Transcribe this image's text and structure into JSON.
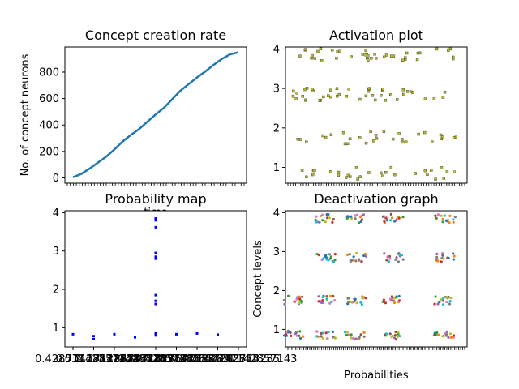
{
  "chart_data": [
    {
      "type": "line",
      "title": "Concept creation rate",
      "xlabel": "time",
      "ylabel": "No. of concept neurons",
      "xlim": [
        0,
        1000
      ],
      "ylim": [
        -40,
        990
      ],
      "yticks": [
        0,
        200,
        400,
        600,
        800
      ],
      "x": [
        0,
        50,
        100,
        150,
        200,
        250,
        300,
        350,
        400,
        450,
        500,
        550,
        600,
        650,
        700,
        750,
        800,
        850,
        900,
        950,
        1000
      ],
      "series": [
        {
          "color": "#1f77b4",
          "values": [
            5,
            30,
            70,
            115,
            160,
            215,
            275,
            325,
            370,
            425,
            480,
            530,
            595,
            660,
            710,
            760,
            805,
            855,
            900,
            935,
            950
          ]
        }
      ],
      "xtick_note": "dense overlapping tick labels (unreadable)"
    },
    {
      "type": "scatter",
      "title": "Activation plot",
      "xlabel": "",
      "ylabel": "",
      "ylim": [
        0.6,
        4.05
      ],
      "yticks": [
        1,
        2,
        3,
        4
      ],
      "marker_color": "#bcbd22",
      "levels": [
        {
          "y": 3.85,
          "count": 40
        },
        {
          "y": 2.85,
          "count": 45
        },
        {
          "y": 1.75,
          "count": 30
        },
        {
          "y": 0.85,
          "count": 30
        }
      ]
    },
    {
      "type": "scatter",
      "title": "Probability map",
      "xlabel": "",
      "ylabel": "",
      "ylim": [
        0.5,
        4.05
      ],
      "yticks": [
        1,
        2,
        3,
        4
      ],
      "marker_color": "#0000ff",
      "x_categories": [
        "0.2",
        "0.4285714285714285",
        "0.7142857142857143",
        "0.5714285714285714",
        "0.2857142857142857",
        "0.8571428571428571",
        "0.42857142857142855",
        "0.14285714285714285",
        "0.7142857142857143"
      ],
      "points": [
        {
          "x": 0,
          "y": 0.83
        },
        {
          "x": 1,
          "y": 0.78
        },
        {
          "x": 1,
          "y": 0.7
        },
        {
          "x": 2,
          "y": 0.83
        },
        {
          "x": 3,
          "y": 0.75
        },
        {
          "x": 4,
          "y": 3.85
        },
        {
          "x": 4,
          "y": 3.8
        },
        {
          "x": 4,
          "y": 3.62
        },
        {
          "x": 4,
          "y": 2.95
        },
        {
          "x": 4,
          "y": 2.85
        },
        {
          "x": 4,
          "y": 2.8
        },
        {
          "x": 4,
          "y": 1.85
        },
        {
          "x": 4,
          "y": 1.7
        },
        {
          "x": 4,
          "y": 1.62
        },
        {
          "x": 4,
          "y": 0.85
        },
        {
          "x": 4,
          "y": 0.8
        },
        {
          "x": 5,
          "y": 0.83
        },
        {
          "x": 6,
          "y": 0.85
        },
        {
          "x": 7,
          "y": 0.82
        }
      ]
    },
    {
      "type": "scatter",
      "title": "Deactivation graph",
      "xlabel": "Probabilities",
      "ylabel": "Concept levels",
      "ylim": [
        0.55,
        4.05
      ],
      "yticks": [
        1,
        2,
        3,
        4
      ],
      "palette": [
        "#1f77b4",
        "#ff7f0e",
        "#2ca02c",
        "#d62728",
        "#9467bd",
        "#8c564b",
        "#e377c2",
        "#7f7f7f",
        "#bcbd22",
        "#17becf"
      ],
      "clusters": [
        {
          "level": 3.85,
          "groups": [
            0.2,
            0.38,
            0.6,
            0.9
          ]
        },
        {
          "level": 2.85,
          "groups": [
            0.2,
            0.38,
            0.6,
            0.9
          ]
        },
        {
          "level": 1.75,
          "groups": [
            0.02,
            0.2,
            0.38,
            0.6,
            0.9
          ]
        },
        {
          "level": 0.85,
          "groups": [
            0.02,
            0.2,
            0.38,
            0.6,
            0.9
          ]
        }
      ]
    }
  ]
}
